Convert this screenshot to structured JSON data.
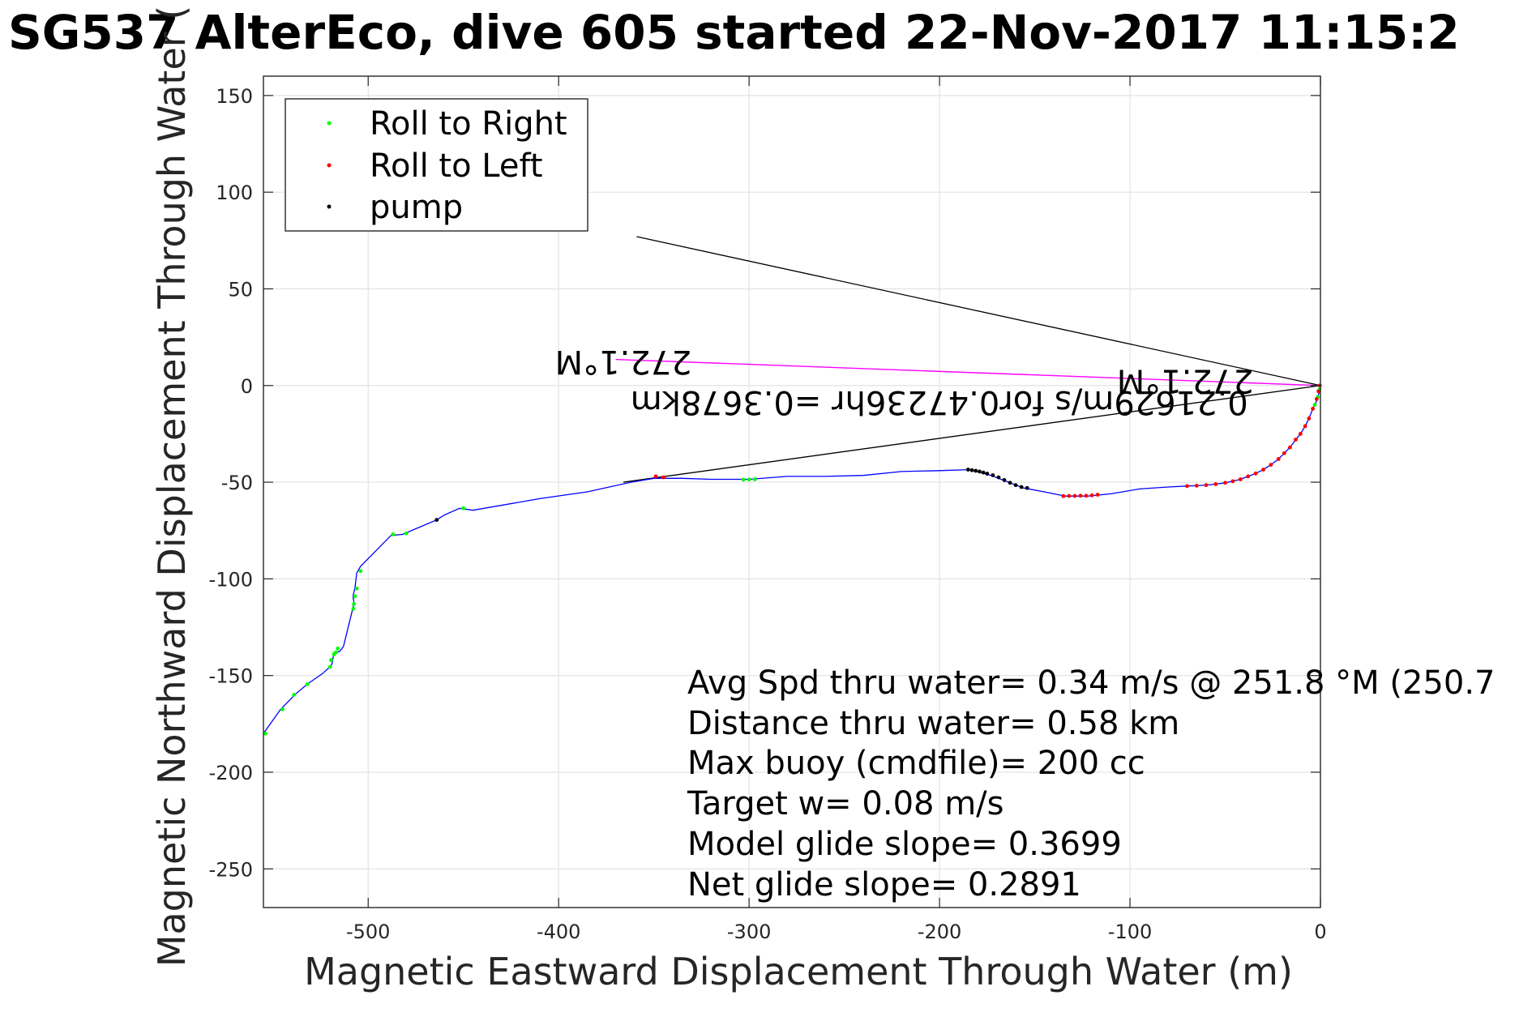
{
  "chart_data": {
    "type": "line",
    "title": "SG537 AlterEco, dive 605 started 22-Nov-2017 11:15:2",
    "xlabel": "Magnetic Eastward Displacement Through Water (m)",
    "ylabel": "Magnetic Northward Displacement Through Water (",
    "xlim": [
      -555,
      0
    ],
    "ylim": [
      -270,
      160
    ],
    "xticks": [
      -500,
      -400,
      -300,
      -200,
      -100,
      0
    ],
    "yticks": [
      150,
      100,
      50,
      0,
      -50,
      -100,
      -150,
      -200,
      -250
    ],
    "xtick_labels": [
      "-500",
      "-400",
      "-300",
      "-200",
      "-100",
      "0"
    ],
    "ytick_labels": [
      "150",
      "100",
      "50",
      "0",
      "-50",
      "-100",
      "-150",
      "-200",
      "-250"
    ],
    "grid": true,
    "legend": {
      "placement": "top-left",
      "entries": [
        {
          "label": "Roll to Right",
          "color": "#00ff00"
        },
        {
          "label": "Roll to Left",
          "color": "#ff0000"
        },
        {
          "label": "pump",
          "color": "#000000"
        }
      ]
    },
    "track": {
      "color": "#0000ff",
      "points": [
        [
          0,
          0
        ],
        [
          -0.8,
          -4
        ],
        [
          -2,
          -8
        ],
        [
          -4,
          -12
        ],
        [
          -6,
          -17
        ],
        [
          -8,
          -21
        ],
        [
          -10.5,
          -25
        ],
        [
          -13,
          -28
        ],
        [
          -16,
          -32
        ],
        [
          -19,
          -35
        ],
        [
          -22,
          -38
        ],
        [
          -26,
          -41
        ],
        [
          -30,
          -43.5
        ],
        [
          -34,
          -45.5
        ],
        [
          -38,
          -47
        ],
        [
          -42,
          -48.5
        ],
        [
          -46,
          -49.5
        ],
        [
          -50,
          -50.3
        ],
        [
          -55,
          -51
        ],
        [
          -60,
          -51.5
        ],
        [
          -65,
          -51.8
        ],
        [
          -70,
          -52
        ],
        [
          -80,
          -52.5
        ],
        [
          -95,
          -53.5
        ],
        [
          -110,
          -56
        ],
        [
          -122,
          -57.2
        ],
        [
          -134,
          -57.2
        ],
        [
          -145,
          -55
        ],
        [
          -156,
          -53
        ],
        [
          -165,
          -49.5
        ],
        [
          -173,
          -46.5
        ],
        [
          -180,
          -44.5
        ],
        [
          -185,
          -43.5
        ],
        [
          -200,
          -44
        ],
        [
          -220,
          -44.5
        ],
        [
          -240,
          -46.5
        ],
        [
          -260,
          -47
        ],
        [
          -280,
          -47
        ],
        [
          -300,
          -48.5
        ],
        [
          -320,
          -48.5
        ],
        [
          -335,
          -48
        ],
        [
          -350,
          -48
        ],
        [
          -362,
          -50
        ],
        [
          -385,
          -55
        ],
        [
          -410,
          -58.5
        ],
        [
          -445,
          -64.5
        ],
        [
          -452,
          -63.5
        ],
        [
          -460,
          -67
        ],
        [
          -464,
          -69.5
        ],
        [
          -482,
          -77
        ],
        [
          -488,
          -77.5
        ],
        [
          -497,
          -86.5
        ],
        [
          -504,
          -93.5
        ],
        [
          -506,
          -97
        ],
        [
          -507,
          -105
        ],
        [
          -508,
          -109
        ],
        [
          -507.5,
          -112
        ],
        [
          -508,
          -115
        ],
        [
          -513,
          -135
        ],
        [
          -515,
          -137.5
        ],
        [
          -518,
          -138.5
        ],
        [
          -519,
          -144
        ],
        [
          -520,
          -145.5
        ],
        [
          -524,
          -149
        ],
        [
          -532,
          -154.5
        ],
        [
          -538,
          -159.5
        ],
        [
          -546,
          -167.5
        ],
        [
          -555,
          -180
        ]
      ]
    },
    "roll_right": [
      [
        -0.5,
        -2
      ],
      [
        -1.5,
        -6
      ],
      [
        -3,
        -10
      ],
      [
        -450,
        -63.5
      ],
      [
        -303,
        -48.7
      ],
      [
        -300,
        -48.6
      ],
      [
        -297,
        -48.5
      ],
      [
        -504,
        -96
      ],
      [
        -506,
        -105
      ],
      [
        -507,
        -109
      ],
      [
        -507.5,
        -113
      ],
      [
        -507.8,
        -115.5
      ],
      [
        -516,
        -136
      ],
      [
        -517,
        -138
      ],
      [
        -518,
        -139
      ],
      [
        -519.5,
        -142
      ],
      [
        -520,
        -145.5
      ],
      [
        -532,
        -154.5
      ],
      [
        -539,
        -160
      ],
      [
        -545,
        -167.5
      ],
      [
        -554,
        -180
      ],
      [
        -487,
        -77
      ],
      [
        -480,
        -76.5
      ]
    ],
    "roll_left": [
      [
        -0.3,
        0
      ],
      [
        -1,
        -3
      ],
      [
        -2,
        -7
      ],
      [
        -4,
        -12
      ],
      [
        -6,
        -17
      ],
      [
        -8,
        -21
      ],
      [
        -10.5,
        -25
      ],
      [
        -13,
        -28
      ],
      [
        -16,
        -32
      ],
      [
        -19,
        -35
      ],
      [
        -22,
        -38
      ],
      [
        -26,
        -41
      ],
      [
        -30,
        -43.5
      ],
      [
        -34,
        -45.5
      ],
      [
        -38,
        -47
      ],
      [
        -42,
        -48.5
      ],
      [
        -46,
        -49.5
      ],
      [
        -50,
        -50.3
      ],
      [
        -55,
        -51
      ],
      [
        -60,
        -51.5
      ],
      [
        -65,
        -51.8
      ],
      [
        -70,
        -52
      ],
      [
        -117,
        -56.5
      ],
      [
        -120,
        -56.8
      ],
      [
        -123,
        -57
      ],
      [
        -126,
        -57
      ],
      [
        -129,
        -57.1
      ],
      [
        -132,
        -57.1
      ],
      [
        -135,
        -57.2
      ],
      [
        -349,
        -47
      ],
      [
        -345,
        -47.5
      ]
    ],
    "pump": [
      [
        -185,
        -43.5
      ],
      [
        -183,
        -43.8
      ],
      [
        -181,
        -44.1
      ],
      [
        -179,
        -44.5
      ],
      [
        -177,
        -45
      ],
      [
        -175,
        -45.6
      ],
      [
        -172,
        -46.4
      ],
      [
        -169,
        -47.5
      ],
      [
        -166,
        -48.9
      ],
      [
        -163,
        -50.3
      ],
      [
        -160,
        -51.5
      ],
      [
        -157,
        -52.5
      ],
      [
        -154,
        -53
      ],
      [
        -464,
        -69.5
      ]
    ],
    "direction_lines": {
      "black": [
        {
          "from": [
            0,
            0
          ],
          "to": [
            -359,
            77
          ]
        },
        {
          "from": [
            0,
            0
          ],
          "to": [
            -366,
            -50
          ]
        }
      ],
      "magenta": {
        "from": [
          0,
          0
        ],
        "to": [
          -370,
          13.5
        ],
        "color": "#ff00ff"
      }
    },
    "flipped_annotations": [
      {
        "text": "272.1°M",
        "x": -330,
        "y": 18
      },
      {
        "text": "272.1°M",
        "x": -35,
        "y": 8
      },
      {
        "text": "0.21629m/s for0.47236hr =0.3678km",
        "x": -38,
        "y": -3
      }
    ],
    "stats": [
      "Avg Spd thru water=  0.34 m/s @ 251.8 °M (250.7",
      "Distance thru water=  0.58 km",
      "Max buoy (cmdfile)= 200 cc",
      "Target w= 0.08 m/s",
      "Model glide slope= 0.3699",
      "Net glide slope= 0.2891"
    ]
  }
}
